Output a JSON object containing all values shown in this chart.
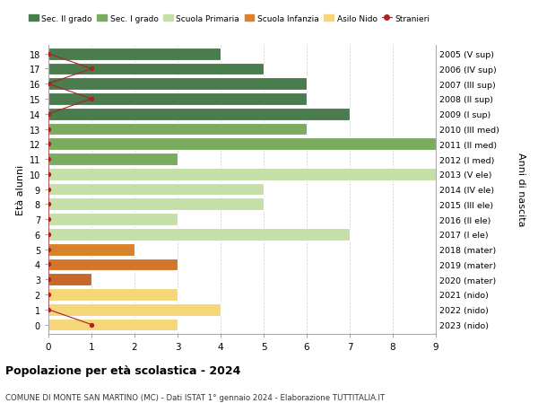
{
  "title": "Popolazione per età scolastica - 2024",
  "subtitle": "COMUNE DI MONTE SAN MARTINO (MC) - Dati ISTAT 1° gennaio 2024 - Elaborazione TUTTITALIA.IT",
  "ylabel": "Età alunni",
  "xlabel2": "Anni di nascita",
  "ages": [
    18,
    17,
    16,
    15,
    14,
    13,
    12,
    11,
    10,
    9,
    8,
    7,
    6,
    5,
    4,
    3,
    2,
    1,
    0
  ],
  "labels_right": [
    "2005 (V sup)",
    "2006 (IV sup)",
    "2007 (III sup)",
    "2008 (II sup)",
    "2009 (I sup)",
    "2010 (III med)",
    "2011 (II med)",
    "2012 (I med)",
    "2013 (V ele)",
    "2014 (IV ele)",
    "2015 (III ele)",
    "2016 (II ele)",
    "2017 (I ele)",
    "2018 (mater)",
    "2019 (mater)",
    "2020 (mater)",
    "2021 (nido)",
    "2022 (nido)",
    "2023 (nido)"
  ],
  "bar_values": [
    4,
    5,
    6,
    6,
    7,
    6,
    9,
    3,
    9,
    5,
    5,
    3,
    7,
    2,
    3,
    1,
    3,
    4,
    3
  ],
  "bar_colors": [
    "#4a7c4e",
    "#4a7c4e",
    "#4a7c4e",
    "#4a7c4e",
    "#4a7c4e",
    "#7aab5e",
    "#7aab5e",
    "#7aab5e",
    "#c5dfa8",
    "#c5dfa8",
    "#c5dfa8",
    "#c5dfa8",
    "#c5dfa8",
    "#d9822b",
    "#d2762a",
    "#c8672a",
    "#f5d77a",
    "#f5d77a",
    "#f5d77a"
  ],
  "stranieri_x": [
    0,
    1,
    0,
    1,
    0,
    0,
    0,
    0,
    0,
    0,
    0,
    0,
    0,
    0,
    0,
    0,
    0,
    0,
    1
  ],
  "stranieri_ages": [
    18,
    17,
    16,
    15,
    14,
    13,
    12,
    11,
    10,
    9,
    8,
    7,
    6,
    5,
    4,
    3,
    2,
    1,
    0
  ],
  "color_sec2": "#4a7c4e",
  "color_sec1": "#7aab5e",
  "color_primaria": "#c5dfa8",
  "color_infanzia": "#d9822b",
  "color_nido": "#f5d77a",
  "color_stranieri": "#aa2222",
  "xlim": [
    0,
    9
  ],
  "bg_color": "#ffffff"
}
